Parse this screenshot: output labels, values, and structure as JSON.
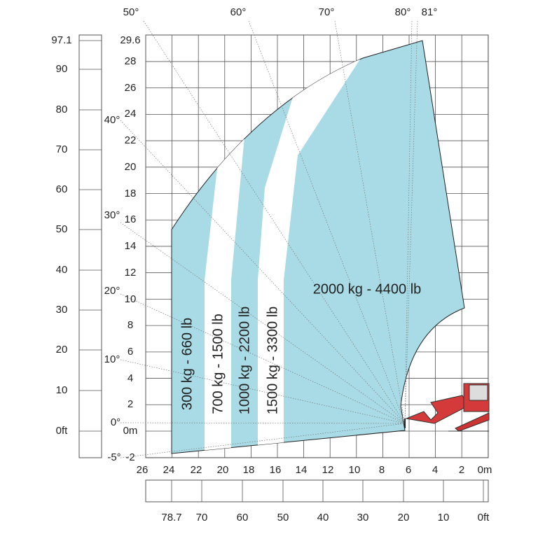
{
  "angles": [
    "50°",
    "60°",
    "70°",
    "80°",
    "81°",
    "40°",
    "30°",
    "20°",
    "10°",
    "0°",
    "-5°"
  ],
  "meter_axis": {
    "y_labels": [
      "29.6",
      "28",
      "26",
      "24",
      "22",
      "20",
      "18",
      "16",
      "14",
      "12",
      "10",
      "8",
      "6",
      "4",
      "2",
      "0m",
      "-2"
    ],
    "x_labels": [
      "26",
      "24",
      "22",
      "20",
      "18",
      "16",
      "14",
      "12",
      "10",
      "8",
      "6",
      "4",
      "2",
      "0m"
    ]
  },
  "feet_axis": {
    "y_labels": [
      "97.1",
      "90",
      "80",
      "70",
      "60",
      "50",
      "40",
      "30",
      "20",
      "10",
      "0ft"
    ],
    "x_labels": [
      "78.7",
      "70",
      "60",
      "50",
      "40",
      "30",
      "20",
      "10",
      "0ft"
    ]
  },
  "zones": [
    "300 kg - 660 lb",
    "700 kg - 1500 lb",
    "1000 kg - 2200 lb",
    "1500 kg - 3300 lb",
    "2000 kg - 4400 lb"
  ]
}
